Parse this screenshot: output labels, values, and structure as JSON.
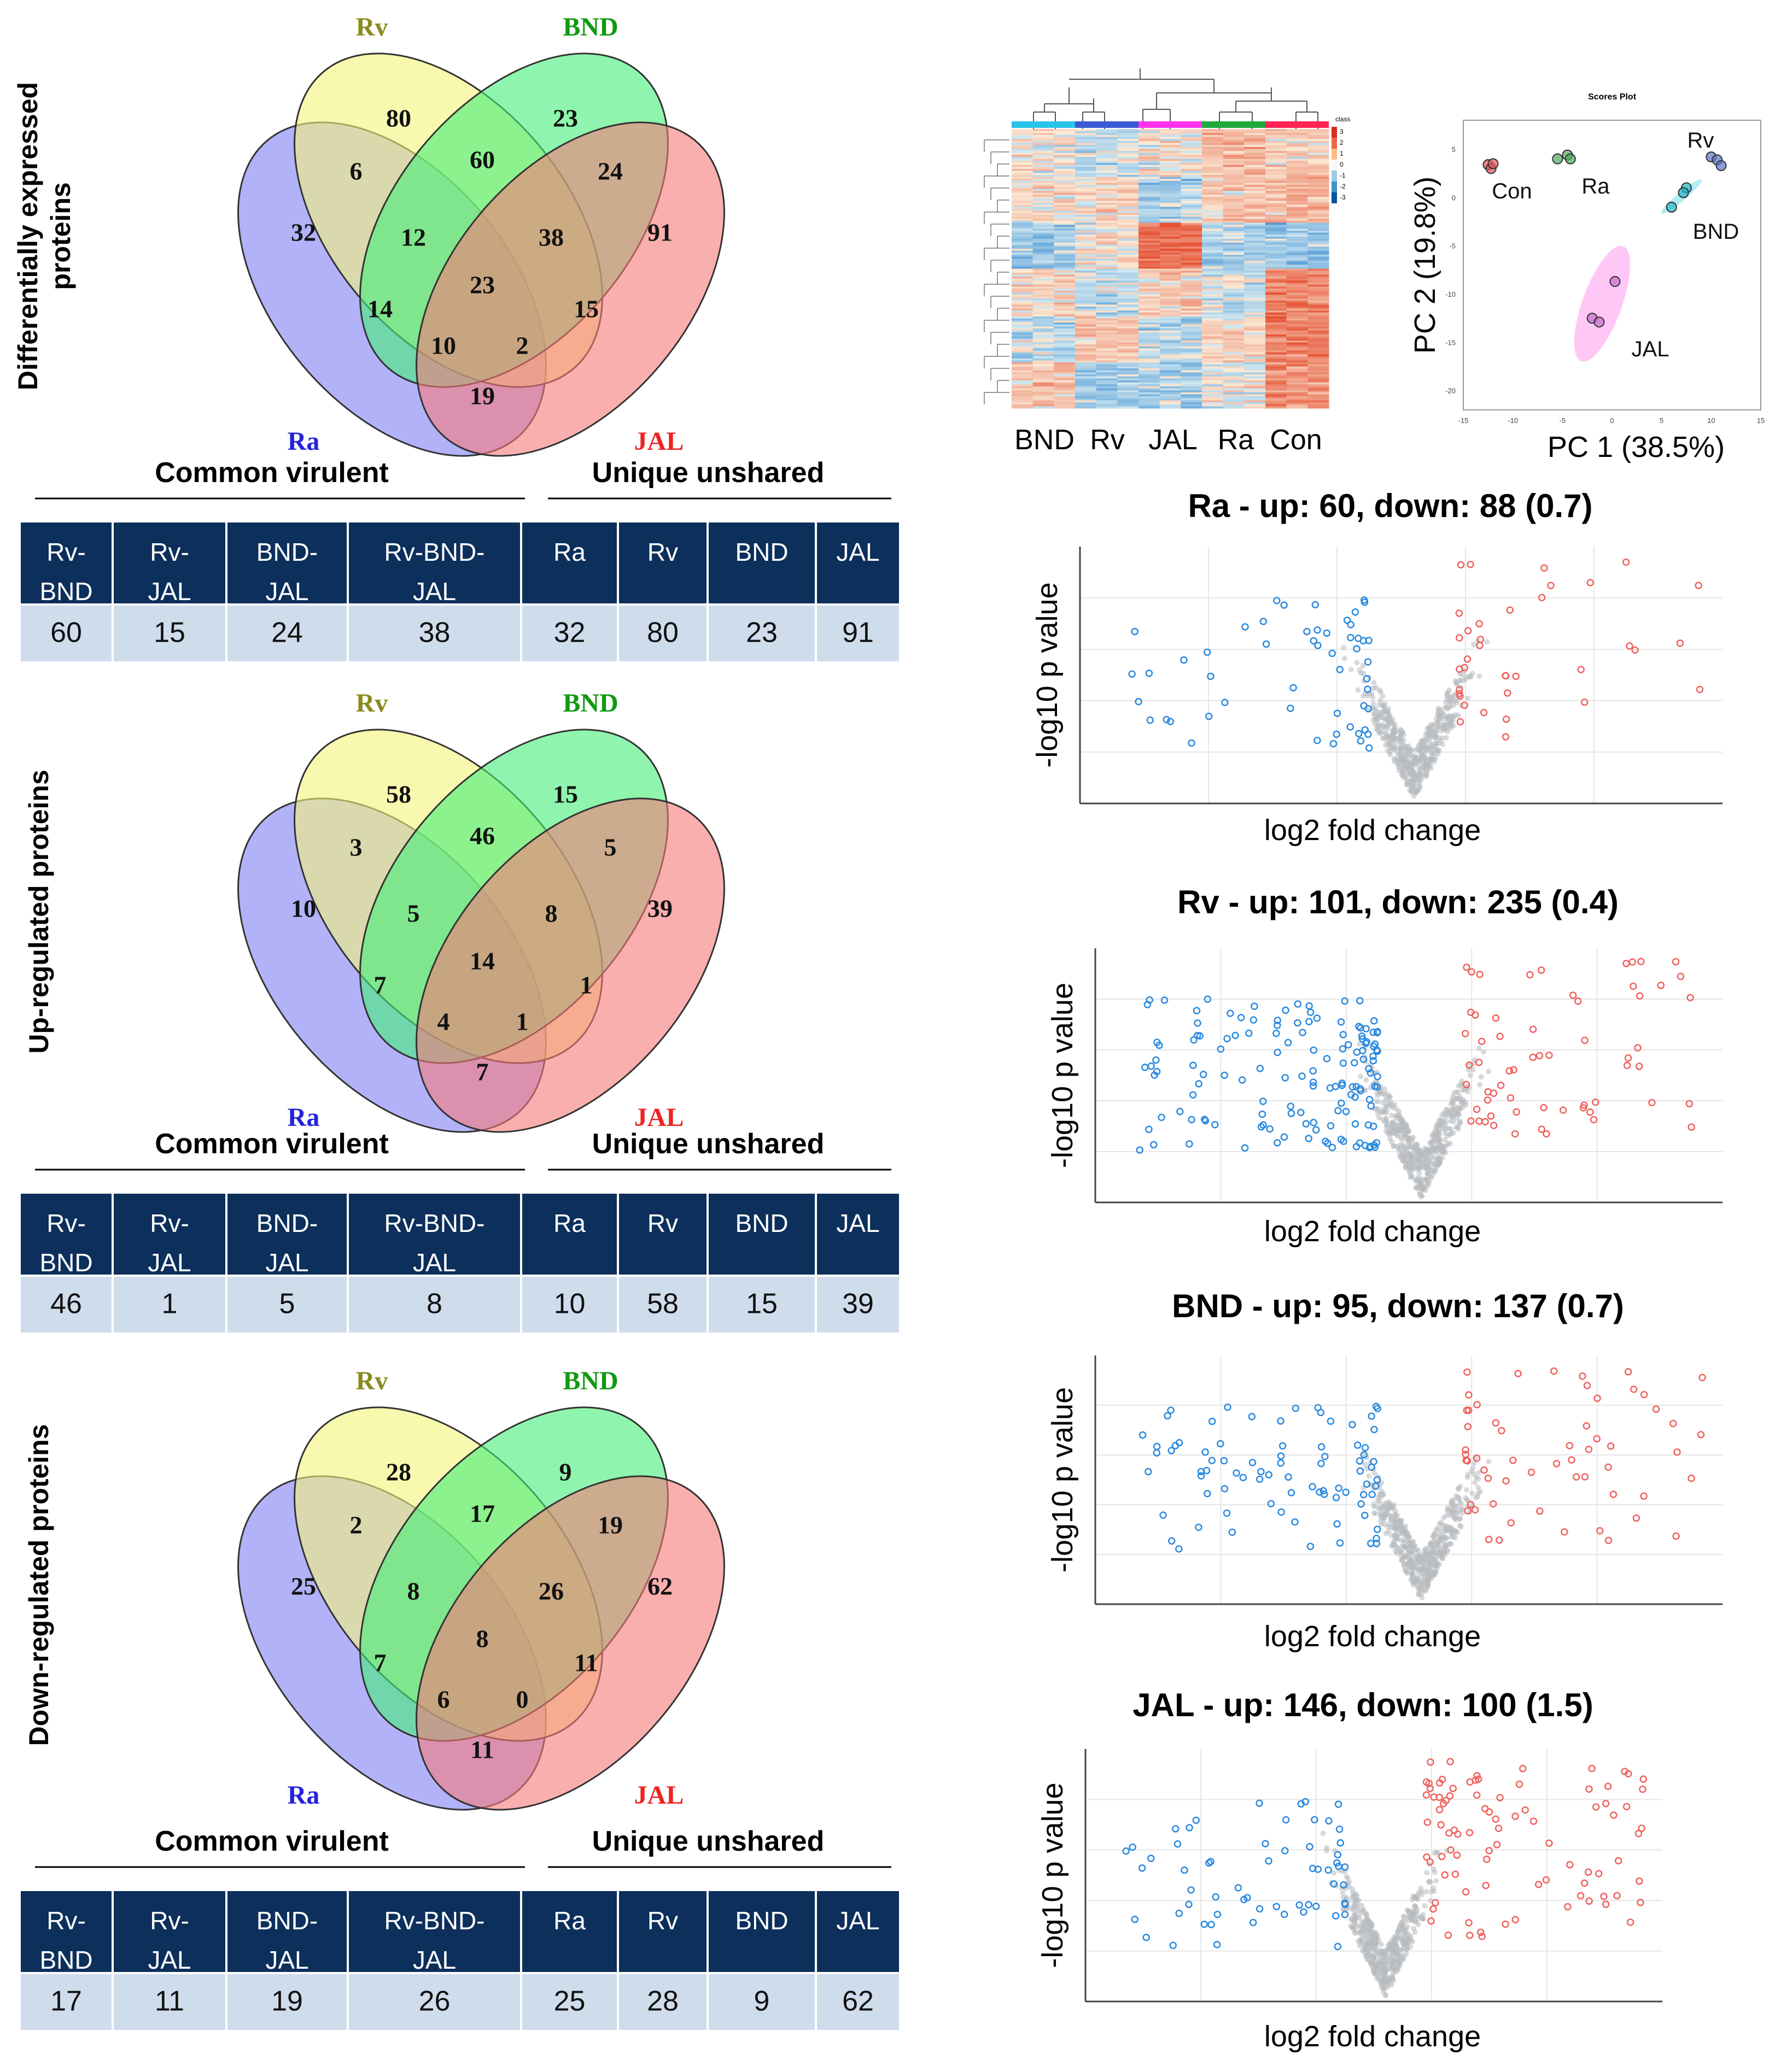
{
  "colors": {
    "header_bg": "#0c2f5b",
    "header_text": "#ffffff",
    "cell_bg": "#cfdcec",
    "up_red": "#f0635f",
    "down_blue": "#2b8ae0",
    "ns_gray": "#b8bcc0",
    "set_Ra": "#2323dd",
    "set_Rv": "#8a8a1e",
    "set_BND": "#119911",
    "set_JAL": "#ee2222"
  },
  "venn_sets": [
    "Ra",
    "Rv",
    "BND",
    "JAL"
  ],
  "table_groups": {
    "common": "Common virulent",
    "unique": "Unique unshared"
  },
  "table_headers": [
    "Rv-\nBND",
    "Rv-\nJAL",
    "BND-\nJAL",
    "Rv-BND-\nJAL",
    "Ra",
    "Rv",
    "BND",
    "JAL"
  ],
  "chart_data": [
    {
      "type": "venn",
      "title": "Differentially expressed proteins",
      "sets": [
        "Ra",
        "Rv",
        "BND",
        "JAL"
      ],
      "regions": {
        "Ra": 32,
        "Rv": 80,
        "BND": 23,
        "JAL": 91,
        "Ra_Rv": 6,
        "Rv_BND": 60,
        "BND_JAL": 24,
        "Ra_Rv_BND": 12,
        "Rv_BND_JAL": 38,
        "Ra_BND": 14,
        "Rv_JAL": 15,
        "all": 23,
        "Ra_BND_JAL": 10,
        "Ra_Rv_JAL": 2,
        "Ra_JAL": 19
      },
      "table": {
        "values": [
          60,
          15,
          24,
          38,
          32,
          80,
          23,
          91
        ]
      }
    },
    {
      "type": "venn",
      "title": "Up-regulated proteins",
      "sets": [
        "Ra",
        "Rv",
        "BND",
        "JAL"
      ],
      "regions": {
        "Ra": 10,
        "Rv": 58,
        "BND": 15,
        "JAL": 39,
        "Ra_Rv": 3,
        "Rv_BND": 46,
        "BND_JAL": 5,
        "Ra_Rv_BND": 5,
        "Rv_BND_JAL": 8,
        "Ra_BND": 7,
        "Rv_JAL": 1,
        "all": 14,
        "Ra_BND_JAL": 4,
        "Ra_Rv_JAL": 1,
        "Ra_JAL": 7
      },
      "table": {
        "values": [
          46,
          1,
          5,
          8,
          10,
          58,
          15,
          39
        ]
      }
    },
    {
      "type": "venn",
      "title": "Down-regulated proteins",
      "sets": [
        "Ra",
        "Rv",
        "BND",
        "JAL"
      ],
      "regions": {
        "Ra": 25,
        "Rv": 28,
        "BND": 9,
        "JAL": 62,
        "Ra_Rv": 2,
        "Rv_BND": 17,
        "BND_JAL": 19,
        "Ra_Rv_BND": 8,
        "Rv_BND_JAL": 26,
        "Ra_BND": 7,
        "Rv_JAL": 11,
        "all": 8,
        "Ra_BND_JAL": 6,
        "Ra_Rv_JAL": 0,
        "Ra_JAL": 11
      },
      "table": {
        "values": [
          17,
          11,
          19,
          26,
          25,
          28,
          9,
          62
        ]
      }
    },
    {
      "type": "heatmap",
      "title": "",
      "columns": [
        "BND",
        "Rv",
        "JAL",
        "Ra",
        "Con"
      ],
      "legend_title": "class",
      "scale_ticks": [
        "3",
        "2",
        "1",
        "0",
        "-1",
        "-2",
        "-3"
      ]
    },
    {
      "type": "scatter",
      "title": "Scores Plot",
      "xlabel": "PC 1 (38.5%)",
      "ylabel": "PC 2 (19.8%)",
      "xlim": [
        -15,
        15
      ],
      "ylim": [
        -22,
        8
      ],
      "xticks": [
        "-15",
        "-10",
        "-5",
        "0",
        "5",
        "10",
        "15"
      ],
      "yticks": [
        "5",
        "0",
        "-5",
        "-10",
        "-15",
        "-20"
      ],
      "groups": [
        {
          "name": "Con",
          "color": "#e05757",
          "points": [
            [
              -12.5,
              3.4
            ],
            [
              -12.2,
              3.0
            ],
            [
              -12.0,
              3.5
            ]
          ]
        },
        {
          "name": "Ra",
          "color": "#4fa85a",
          "points": [
            [
              -5.5,
              4.0
            ],
            [
              -4.5,
              4.4
            ],
            [
              -4.2,
              4.0
            ]
          ]
        },
        {
          "name": "Rv",
          "color": "#5874c9",
          "points": [
            [
              10.0,
              4.2
            ],
            [
              10.6,
              3.9
            ],
            [
              11.0,
              3.3
            ]
          ]
        },
        {
          "name": "BND",
          "color": "#2ab3c7",
          "points": [
            [
              6.0,
              -1.0
            ],
            [
              7.5,
              1.0
            ],
            [
              7.2,
              0.5
            ]
          ]
        },
        {
          "name": "JAL",
          "color": "#c46ec9",
          "points": [
            [
              -2.0,
              -12.5
            ],
            [
              -1.3,
              -12.9
            ],
            [
              0.3,
              -8.7
            ]
          ]
        }
      ]
    },
    {
      "type": "scatter",
      "subtype": "volcano",
      "title": "Ra - up: 60, down: 88 (0.7)",
      "xlabel": "log2 fold change",
      "ylabel": "-log10 p value",
      "up": 60,
      "down": 88
    },
    {
      "type": "scatter",
      "subtype": "volcano",
      "title": "Rv - up: 101, down: 235 (0.4)",
      "xlabel": "log2 fold change",
      "ylabel": "-log10 p value",
      "up": 101,
      "down": 235
    },
    {
      "type": "scatter",
      "subtype": "volcano",
      "title": "BND - up: 95, down: 137 (0.7)",
      "xlabel": "log2 fold change",
      "ylabel": "-log10 p value",
      "up": 95,
      "down": 137
    },
    {
      "type": "scatter",
      "subtype": "volcano",
      "title": "JAL - up: 146, down: 100 (1.5)",
      "xlabel": "log2 fold change",
      "ylabel": "-log10 p value",
      "up": 146,
      "down": 100
    }
  ]
}
